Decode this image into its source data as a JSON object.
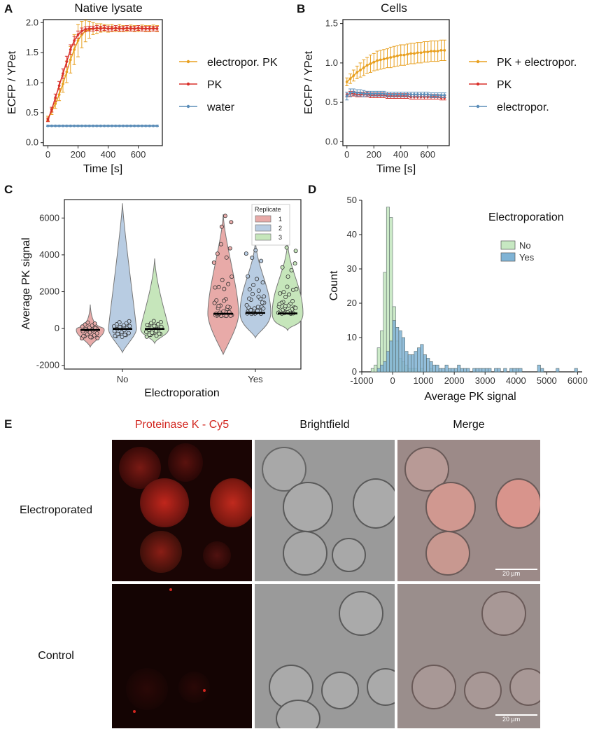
{
  "panels": {
    "A": {
      "letter": "A",
      "title": "Native lysate",
      "xlabel": "Time [s]",
      "ylabel": "ECFP / YPet"
    },
    "B": {
      "letter": "B",
      "title": "Cells",
      "xlabel": "Time [s]",
      "ylabel": "ECFP / YPet"
    },
    "C": {
      "letter": "C",
      "xlabel": "Electroporation",
      "ylabel": "Average PK signal",
      "legend_title": "Replicate"
    },
    "D": {
      "letter": "D",
      "xlabel": "Average PK signal",
      "ylabel": "Count",
      "legend_title": "Electroporation"
    },
    "E": {
      "letter": "E",
      "col_labels": [
        "Proteinase K - Cy5",
        "Brightfield",
        "Merge"
      ],
      "row_labels": [
        "Electroporated",
        "Control"
      ],
      "scalebar": "20 µm"
    }
  },
  "colors": {
    "orange": "#e8a020",
    "red": "#d9312b",
    "blue": "#5b8db8",
    "rep1": "#e8aaa8",
    "rep2": "#b8cce2",
    "rep3": "#c6e6bb",
    "no": "#c7e8c2",
    "yes": "#7fb3d5",
    "cy5": "#d2261f"
  },
  "chart_data": [
    {
      "type": "line",
      "panel": "A",
      "title": "Native lysate",
      "xlabel": "Time [s]",
      "ylabel": "ECFP / YPet",
      "xlim": [
        -30,
        760
      ],
      "ylim": [
        -0.05,
        2.05
      ],
      "xticks": [
        0,
        200,
        400,
        600
      ],
      "yticks": [
        0.0,
        0.5,
        1.0,
        1.5,
        2.0
      ],
      "x": [
        0,
        25,
        50,
        75,
        100,
        125,
        150,
        175,
        200,
        225,
        250,
        275,
        300,
        325,
        350,
        375,
        400,
        425,
        450,
        475,
        500,
        525,
        550,
        575,
        600,
        625,
        650,
        675,
        700,
        725
      ],
      "series": [
        {
          "name": "electropor. PK",
          "color": "#e8a020",
          "values": [
            0.4,
            0.52,
            0.65,
            0.8,
            0.98,
            1.18,
            1.38,
            1.55,
            1.7,
            1.8,
            1.86,
            1.88,
            1.9,
            1.9,
            1.91,
            1.91,
            1.9,
            1.91,
            1.9,
            1.91,
            1.9,
            1.9,
            1.91,
            1.9,
            1.9,
            1.91,
            1.9,
            1.9,
            1.91,
            1.9
          ],
          "err": [
            0.04,
            0.05,
            0.08,
            0.1,
            0.14,
            0.18,
            0.22,
            0.25,
            0.27,
            0.22,
            0.18,
            0.14,
            0.1,
            0.08,
            0.07,
            0.06,
            0.06,
            0.06,
            0.05,
            0.06,
            0.05,
            0.05,
            0.05,
            0.05,
            0.05,
            0.05,
            0.05,
            0.05,
            0.05,
            0.05
          ]
        },
        {
          "name": "PK",
          "color": "#d9312b",
          "values": [
            0.38,
            0.55,
            0.75,
            0.95,
            1.15,
            1.35,
            1.55,
            1.7,
            1.8,
            1.86,
            1.89,
            1.9,
            1.9,
            1.91,
            1.9,
            1.91,
            1.9,
            1.9,
            1.91,
            1.9,
            1.9,
            1.91,
            1.9,
            1.9,
            1.91,
            1.9,
            1.9,
            1.9,
            1.9,
            1.9
          ],
          "err": [
            0.03,
            0.04,
            0.06,
            0.07,
            0.08,
            0.09,
            0.08,
            0.07,
            0.06,
            0.05,
            0.04,
            0.04,
            0.04,
            0.04,
            0.04,
            0.04,
            0.04,
            0.04,
            0.04,
            0.04,
            0.04,
            0.04,
            0.04,
            0.04,
            0.04,
            0.04,
            0.04,
            0.04,
            0.04,
            0.04
          ]
        },
        {
          "name": "water",
          "color": "#5b8db8",
          "values": [
            0.28,
            0.28,
            0.28,
            0.28,
            0.28,
            0.28,
            0.28,
            0.28,
            0.28,
            0.28,
            0.28,
            0.28,
            0.28,
            0.28,
            0.28,
            0.28,
            0.28,
            0.28,
            0.28,
            0.28,
            0.28,
            0.28,
            0.28,
            0.28,
            0.28,
            0.28,
            0.28,
            0.28,
            0.28,
            0.28
          ],
          "err": [
            0.01,
            0.01,
            0.01,
            0.01,
            0.01,
            0.01,
            0.01,
            0.01,
            0.01,
            0.01,
            0.01,
            0.01,
            0.01,
            0.01,
            0.01,
            0.01,
            0.01,
            0.01,
            0.01,
            0.01,
            0.01,
            0.01,
            0.01,
            0.01,
            0.01,
            0.01,
            0.01,
            0.01,
            0.01,
            0.01
          ]
        }
      ]
    },
    {
      "type": "line",
      "panel": "B",
      "title": "Cells",
      "xlabel": "Time [s]",
      "ylabel": "ECFP / YPet",
      "xlim": [
        -30,
        760
      ],
      "ylim": [
        -0.05,
        1.55
      ],
      "xticks": [
        0,
        200,
        400,
        600
      ],
      "yticks": [
        0.0,
        0.5,
        1.0,
        1.5
      ],
      "x": [
        0,
        25,
        50,
        75,
        100,
        125,
        150,
        175,
        200,
        225,
        250,
        275,
        300,
        325,
        350,
        375,
        400,
        425,
        450,
        475,
        500,
        525,
        550,
        575,
        600,
        625,
        650,
        675,
        700,
        725
      ],
      "series": [
        {
          "name": "PK + electropor.",
          "color": "#e8a020",
          "values": [
            0.76,
            0.8,
            0.84,
            0.88,
            0.91,
            0.94,
            0.97,
            0.99,
            1.01,
            1.03,
            1.04,
            1.05,
            1.06,
            1.07,
            1.08,
            1.09,
            1.1,
            1.1,
            1.11,
            1.12,
            1.12,
            1.13,
            1.13,
            1.14,
            1.14,
            1.15,
            1.15,
            1.15,
            1.16,
            1.16
          ],
          "err": [
            0.05,
            0.06,
            0.07,
            0.08,
            0.09,
            0.1,
            0.1,
            0.11,
            0.11,
            0.12,
            0.12,
            0.12,
            0.12,
            0.13,
            0.13,
            0.13,
            0.13,
            0.13,
            0.13,
            0.13,
            0.13,
            0.13,
            0.13,
            0.13,
            0.13,
            0.13,
            0.13,
            0.13,
            0.13,
            0.13
          ]
        },
        {
          "name": "PK",
          "color": "#d9312b",
          "values": [
            0.6,
            0.61,
            0.61,
            0.6,
            0.6,
            0.6,
            0.6,
            0.59,
            0.59,
            0.59,
            0.59,
            0.59,
            0.58,
            0.58,
            0.58,
            0.58,
            0.58,
            0.58,
            0.58,
            0.57,
            0.57,
            0.57,
            0.57,
            0.57,
            0.57,
            0.57,
            0.57,
            0.57,
            0.56,
            0.56
          ],
          "err": [
            0.03,
            0.03,
            0.03,
            0.03,
            0.03,
            0.03,
            0.03,
            0.03,
            0.03,
            0.03,
            0.03,
            0.03,
            0.03,
            0.03,
            0.03,
            0.03,
            0.03,
            0.03,
            0.03,
            0.03,
            0.03,
            0.03,
            0.03,
            0.03,
            0.03,
            0.03,
            0.03,
            0.03,
            0.03,
            0.03
          ]
        },
        {
          "name": "electropor.",
          "color": "#5b8db8",
          "values": [
            0.58,
            0.62,
            0.63,
            0.62,
            0.62,
            0.61,
            0.61,
            0.61,
            0.61,
            0.61,
            0.61,
            0.61,
            0.6,
            0.6,
            0.6,
            0.6,
            0.6,
            0.6,
            0.6,
            0.6,
            0.6,
            0.6,
            0.6,
            0.6,
            0.6,
            0.59,
            0.59,
            0.59,
            0.59,
            0.59
          ],
          "err": [
            0.05,
            0.05,
            0.04,
            0.04,
            0.04,
            0.04,
            0.03,
            0.03,
            0.03,
            0.03,
            0.03,
            0.03,
            0.03,
            0.03,
            0.03,
            0.03,
            0.03,
            0.03,
            0.03,
            0.03,
            0.03,
            0.03,
            0.03,
            0.03,
            0.03,
            0.03,
            0.03,
            0.03,
            0.03,
            0.03
          ]
        }
      ]
    },
    {
      "type": "violin",
      "panel": "C",
      "xlabel": "Electroporation",
      "ylabel": "Average PK signal",
      "categories": [
        "No",
        "Yes"
      ],
      "ylim": [
        -2200,
        7000
      ],
      "yticks": [
        -2000,
        0,
        2000,
        4000,
        6000
      ],
      "legend_title": "Replicate",
      "legend": [
        "1",
        "2",
        "3"
      ],
      "groups": [
        {
          "category": "No",
          "replicate": "1",
          "median": -80,
          "min": -1000,
          "max": 1300,
          "color": "#e8aaa8"
        },
        {
          "category": "No",
          "replicate": "2",
          "median": -20,
          "min": -1300,
          "max": 6800,
          "color": "#b8cce2"
        },
        {
          "category": "No",
          "replicate": "3",
          "median": -20,
          "min": -800,
          "max": 3800,
          "color": "#c6e6bb"
        },
        {
          "category": "Yes",
          "replicate": "1",
          "median": 800,
          "min": -1400,
          "max": 6200,
          "color": "#e8aaa8"
        },
        {
          "category": "Yes",
          "replicate": "2",
          "median": 850,
          "min": -500,
          "max": 4800,
          "color": "#b8cce2"
        },
        {
          "category": "Yes",
          "replicate": "3",
          "median": 820,
          "min": -100,
          "max": 4700,
          "color": "#c6e6bb"
        }
      ]
    },
    {
      "type": "histogram",
      "panel": "D",
      "xlabel": "Average PK signal",
      "ylabel": "Count",
      "xlim": [
        -1000,
        6150
      ],
      "ylim": [
        0,
        50
      ],
      "xticks": [
        -1000,
        0,
        1000,
        2000,
        3000,
        4000,
        5000,
        6000
      ],
      "yticks": [
        0,
        10,
        20,
        30,
        40,
        50
      ],
      "legend_title": "Electroporation",
      "legend": [
        "No",
        "Yes"
      ],
      "bin_width": 100,
      "series": [
        {
          "name": "No",
          "color": "#c7e8c2",
          "bins": [
            [
              -700,
              1
            ],
            [
              -600,
              2
            ],
            [
              -500,
              7
            ],
            [
              -400,
              12
            ],
            [
              -300,
              29
            ],
            [
              -200,
              48
            ],
            [
              -100,
              45
            ],
            [
              0,
              19
            ],
            [
              100,
              9
            ],
            [
              200,
              4
            ],
            [
              300,
              3
            ],
            [
              400,
              2
            ],
            [
              500,
              1
            ],
            [
              600,
              1
            ],
            [
              700,
              1
            ],
            [
              900,
              1
            ],
            [
              1200,
              1
            ]
          ]
        },
        {
          "name": "Yes",
          "color": "#7fb3d5",
          "bins": [
            [
              -500,
              1
            ],
            [
              -400,
              2
            ],
            [
              -300,
              3
            ],
            [
              -200,
              6
            ],
            [
              -100,
              9
            ],
            [
              0,
              15
            ],
            [
              100,
              13
            ],
            [
              200,
              12
            ],
            [
              300,
              10
            ],
            [
              400,
              6
            ],
            [
              500,
              5
            ],
            [
              600,
              5
            ],
            [
              700,
              6
            ],
            [
              800,
              7
            ],
            [
              900,
              8
            ],
            [
              1000,
              5
            ],
            [
              1100,
              4
            ],
            [
              1200,
              3
            ],
            [
              1300,
              2
            ],
            [
              1400,
              2
            ],
            [
              1500,
              1
            ],
            [
              1600,
              1
            ],
            [
              1700,
              2
            ],
            [
              1800,
              1
            ],
            [
              1900,
              1
            ],
            [
              2000,
              1
            ],
            [
              2100,
              2
            ],
            [
              2200,
              1
            ],
            [
              2300,
              1
            ],
            [
              2400,
              1
            ],
            [
              2600,
              1
            ],
            [
              2700,
              1
            ],
            [
              2800,
              1
            ],
            [
              2900,
              1
            ],
            [
              3000,
              1
            ],
            [
              3100,
              1
            ],
            [
              3300,
              1
            ],
            [
              3400,
              1
            ],
            [
              3600,
              1
            ],
            [
              3800,
              1
            ],
            [
              3900,
              1
            ],
            [
              4000,
              1
            ],
            [
              4100,
              1
            ],
            [
              4700,
              2
            ],
            [
              4800,
              1
            ],
            [
              5300,
              1
            ],
            [
              5900,
              1
            ]
          ]
        }
      ]
    }
  ]
}
